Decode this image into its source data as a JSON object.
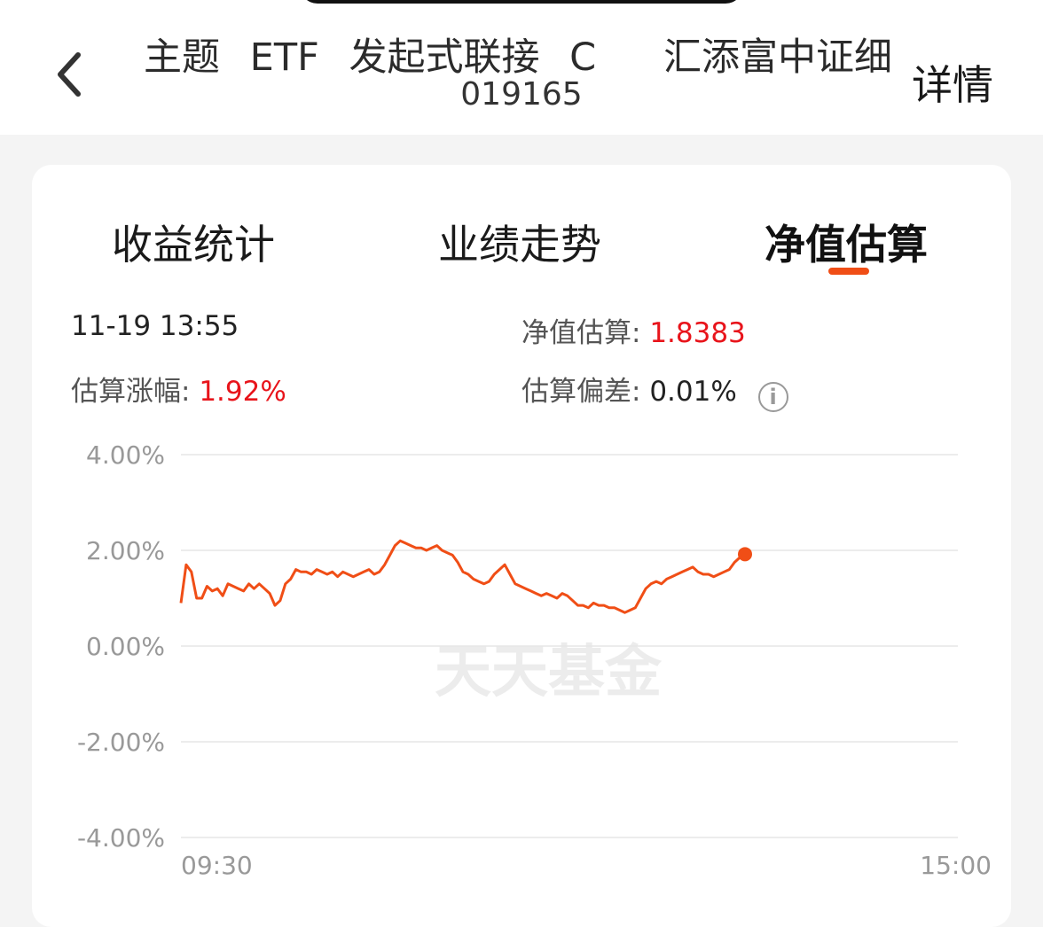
{
  "header": {
    "back_icon": "chevron-left-icon",
    "title_part1": "主题 ETF 发起式联接 C",
    "title_part2": "汇添富中证细",
    "code": "019165",
    "detail_label": "详情"
  },
  "tabs": [
    {
      "label": "收益统计",
      "active": false
    },
    {
      "label": "业绩走势",
      "active": false
    },
    {
      "label": "净值估算",
      "active": true
    }
  ],
  "info": {
    "datetime": "11-19 13:55",
    "nav_label": "净值估算:",
    "nav_value": "1.8383",
    "change_label": "估算涨幅:",
    "change_value": "1.92%",
    "deviation_label": "估算偏差:",
    "deviation_value": "0.01%",
    "deviation_icon": "info-icon"
  },
  "colors": {
    "accent": "#f04e16",
    "up": "#e8141b"
  },
  "watermark": "天天基金",
  "chart_data": {
    "type": "line",
    "ylim": [
      -4,
      4
    ],
    "yticks": [
      "4.00%",
      "2.00%",
      "0.00%",
      "-2.00%",
      "-4.00%"
    ],
    "x_start": "09:30",
    "x_end": "15:00",
    "grid": true,
    "series": [
      {
        "values": [
          0.9,
          1.7,
          1.55,
          1.0,
          1.0,
          1.25,
          1.15,
          1.2,
          1.05,
          1.3,
          1.25,
          1.2,
          1.15,
          1.3,
          1.2,
          1.3,
          1.2,
          1.1,
          0.85,
          0.95,
          1.3,
          1.4,
          1.6,
          1.55,
          1.55,
          1.5,
          1.6,
          1.55,
          1.5,
          1.55,
          1.45,
          1.55,
          1.5,
          1.45,
          1.5,
          1.55,
          1.6,
          1.5,
          1.55,
          1.7,
          1.9,
          2.1,
          2.2,
          2.15,
          2.1,
          2.05,
          2.05,
          2.0,
          2.05,
          2.1,
          2.0,
          1.95,
          1.9,
          1.75,
          1.55,
          1.5,
          1.4,
          1.35,
          1.3,
          1.35,
          1.5,
          1.6,
          1.7,
          1.5,
          1.3,
          1.25,
          1.2,
          1.15,
          1.1,
          1.05,
          1.1,
          1.05,
          1.0,
          1.1,
          1.05,
          0.95,
          0.85,
          0.85,
          0.8,
          0.9,
          0.85,
          0.85,
          0.8,
          0.8,
          0.75,
          0.7,
          0.75,
          0.8,
          1.0,
          1.2,
          1.3,
          1.35,
          1.3,
          1.4,
          1.45,
          1.5,
          1.55,
          1.6,
          1.65,
          1.55,
          1.5,
          1.5,
          1.45,
          1.5,
          1.55,
          1.6,
          1.75,
          1.85,
          1.92
        ]
      }
    ]
  }
}
